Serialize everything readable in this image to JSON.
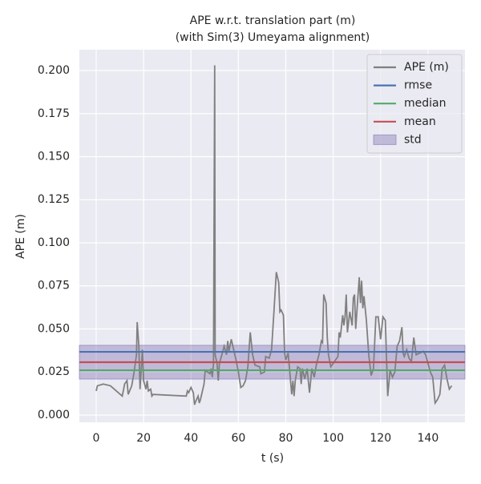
{
  "chart_data": {
    "type": "line",
    "title": "APE w.r.t. translation part (m)",
    "subtitle": "(with Sim(3) Umeyama alignment)",
    "xlabel": "t (s)",
    "ylabel": "APE (m)",
    "xlim": [
      -7.1,
      155.6
    ],
    "ylim": [
      -0.0042,
      0.2121
    ],
    "xticks": [
      0,
      20,
      40,
      60,
      80,
      100,
      120,
      140
    ],
    "yticks": [
      {
        "value": 0,
        "label": "0.000"
      },
      {
        "value": 0.025,
        "label": "0.025"
      },
      {
        "value": 0.05,
        "label": "0.050"
      },
      {
        "value": 0.075,
        "label": "0.075"
      },
      {
        "value": 0.1,
        "label": "0.100"
      },
      {
        "value": 0.125,
        "label": "0.125"
      },
      {
        "value": 0.15,
        "label": "0.150"
      },
      {
        "value": 0.175,
        "label": "0.175"
      },
      {
        "value": 0.2,
        "label": "0.200"
      }
    ],
    "grid": true,
    "legend": "upper right",
    "series": [
      {
        "name": "APE (m)",
        "color": "#808080",
        "x": [
          0,
          0.5,
          3,
          6,
          11,
          12,
          13,
          13.5,
          15,
          16,
          17,
          17.3,
          18,
          18.5,
          19.5,
          20,
          21,
          21.5,
          22,
          23,
          23.5,
          24,
          38,
          38.5,
          39,
          40,
          41,
          41.5,
          42,
          43,
          43.5,
          44,
          45,
          45.5,
          46,
          47,
          48,
          48.5,
          49,
          49.5,
          50,
          50.2,
          51,
          51.5,
          52,
          53,
          54,
          55,
          55.5,
          56,
          57,
          58,
          59,
          60,
          61,
          62,
          63,
          64,
          65,
          66,
          67,
          69,
          69.5,
          71,
          71.5,
          73,
          74,
          75,
          76,
          77,
          77.5,
          78,
          79,
          79.5,
          80,
          81,
          82,
          82.5,
          83,
          83.5,
          84,
          85,
          86,
          86.5,
          87,
          88,
          89,
          90,
          91,
          92,
          93,
          94,
          95,
          95.5,
          96,
          97,
          97.5,
          98,
          99,
          100,
          101,
          102,
          102.5,
          103,
          104,
          104.5,
          105,
          105.5,
          106,
          107,
          108,
          108.5,
          109,
          109.5,
          110,
          111,
          111.5,
          112,
          112.5,
          113,
          114,
          115,
          116,
          117,
          118,
          119,
          120,
          121,
          122,
          123,
          124,
          125,
          126,
          127,
          128,
          129,
          129.5,
          130,
          131,
          132,
          133,
          134,
          135,
          138,
          139,
          140,
          141,
          142,
          143,
          144,
          145,
          146,
          147,
          148,
          149,
          150
        ],
        "values": [
          0.014,
          0.017,
          0.018,
          0.017,
          0.011,
          0.018,
          0.02,
          0.012,
          0.017,
          0.025,
          0.035,
          0.054,
          0.04,
          0.015,
          0.038,
          0.02,
          0.015,
          0.02,
          0.014,
          0.015,
          0.011,
          0.012,
          0.011,
          0.014,
          0.013,
          0.016,
          0.013,
          0.006,
          0.008,
          0.011,
          0.007,
          0.009,
          0.015,
          0.018,
          0.026,
          0.025,
          0.024,
          0.027,
          0.022,
          0.03,
          0.203,
          0.035,
          0.03,
          0.02,
          0.03,
          0.035,
          0.04,
          0.035,
          0.043,
          0.037,
          0.044,
          0.038,
          0.032,
          0.025,
          0.016,
          0.017,
          0.02,
          0.028,
          0.048,
          0.035,
          0.029,
          0.028,
          0.024,
          0.025,
          0.034,
          0.033,
          0.038,
          0.06,
          0.083,
          0.077,
          0.06,
          0.061,
          0.058,
          0.036,
          0.032,
          0.036,
          0.02,
          0.012,
          0.02,
          0.011,
          0.02,
          0.028,
          0.027,
          0.018,
          0.027,
          0.021,
          0.027,
          0.013,
          0.027,
          0.022,
          0.03,
          0.035,
          0.043,
          0.042,
          0.07,
          0.065,
          0.045,
          0.035,
          0.028,
          0.03,
          0.032,
          0.034,
          0.048,
          0.045,
          0.058,
          0.052,
          0.057,
          0.07,
          0.048,
          0.06,
          0.052,
          0.068,
          0.07,
          0.05,
          0.06,
          0.08,
          0.065,
          0.078,
          0.062,
          0.069,
          0.055,
          0.035,
          0.023,
          0.027,
          0.057,
          0.057,
          0.044,
          0.057,
          0.055,
          0.011,
          0.026,
          0.022,
          0.025,
          0.04,
          0.043,
          0.051,
          0.036,
          0.034,
          0.038,
          0.033,
          0.031,
          0.045,
          0.035,
          0.037,
          0.035,
          0.03,
          0.025,
          0.022,
          0.007,
          0.009,
          0.012,
          0.027,
          0.029,
          0.021,
          0.015,
          0.017
        ]
      }
    ],
    "hlines": [
      {
        "name": "rmse",
        "color": "#4c72b0",
        "value": 0.0367
      },
      {
        "name": "median",
        "color": "#55a868",
        "value": 0.026
      },
      {
        "name": "mean",
        "color": "#c44e52",
        "value": 0.0307
      }
    ],
    "band": {
      "name": "std",
      "color": "#8172b2",
      "range": [
        0.0209,
        0.0405
      ]
    }
  }
}
